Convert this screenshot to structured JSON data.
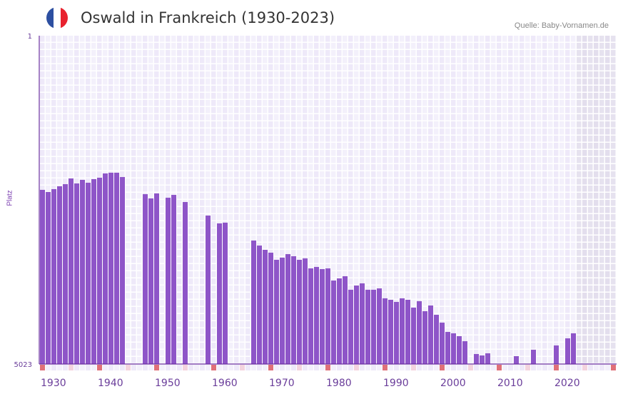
{
  "header": {
    "title": "Oswald in Frankreich (1930-2023)",
    "source": "Quelle: Baby-Vornamen.de"
  },
  "flag": {
    "name": "france-flag",
    "colors": [
      "#2d4fa1",
      "#ffffff",
      "#e8232f"
    ]
  },
  "colors": {
    "bar": "#8e55c8",
    "axis": "#6a2fa0",
    "label": "#6a3d9a",
    "decade_marker": "#e07078",
    "half_decade_marker": "#f3d3de"
  },
  "chart_data": {
    "type": "bar",
    "title": "Oswald in Frankreich (1930-2023)",
    "xlabel": "",
    "ylabel": "Platz",
    "ylim": [
      1,
      5023
    ],
    "y_inverted": true,
    "y_ticks": [
      "1",
      "5023"
    ],
    "x_range": [
      1930,
      2030
    ],
    "x_tick_labels": [
      "1930",
      "1940",
      "1950",
      "1960",
      "1970",
      "1980",
      "1990",
      "2000",
      "2010",
      "2020"
    ],
    "future_from": 2024,
    "years": [
      1930,
      1931,
      1932,
      1933,
      1934,
      1935,
      1936,
      1937,
      1938,
      1939,
      1940,
      1941,
      1942,
      1943,
      1944,
      1945,
      1946,
      1947,
      1948,
      1949,
      1950,
      1951,
      1952,
      1953,
      1954,
      1955,
      1956,
      1957,
      1958,
      1959,
      1960,
      1961,
      1962,
      1963,
      1964,
      1965,
      1966,
      1967,
      1968,
      1969,
      1970,
      1971,
      1972,
      1973,
      1974,
      1975,
      1976,
      1977,
      1978,
      1979,
      1980,
      1981,
      1982,
      1983,
      1984,
      1985,
      1986,
      1987,
      1988,
      1989,
      1990,
      1991,
      1992,
      1993,
      1994,
      1995,
      1996,
      1997,
      1998,
      1999,
      2000,
      2001,
      2002,
      2003,
      2004,
      2005,
      2006,
      2007,
      2008,
      2009,
      2010,
      2011,
      2012,
      2013,
      2014,
      2015,
      2016,
      2017,
      2018,
      2019,
      2020,
      2021,
      2022,
      2023
    ],
    "values": [
      2359,
      2392,
      2348,
      2304,
      2272,
      2184,
      2261,
      2206,
      2250,
      2195,
      2173,
      2108,
      2097,
      2097,
      2163,
      null,
      null,
      null,
      2425,
      2490,
      2414,
      null,
      2479,
      2436,
      null,
      2545,
      null,
      null,
      null,
      2752,
      null,
      2872,
      2861,
      null,
      null,
      null,
      null,
      3134,
      3211,
      3276,
      3320,
      3429,
      3396,
      3342,
      3374,
      3429,
      3407,
      3560,
      3538,
      3571,
      3560,
      3746,
      3713,
      3680,
      3887,
      3822,
      3789,
      3887,
      3887,
      3866,
      4018,
      4040,
      4073,
      4018,
      4040,
      4160,
      4062,
      4215,
      4128,
      4270,
      4390,
      4532,
      4553,
      4597,
      4674,
      null,
      4870,
      4892,
      4859,
      null,
      null,
      null,
      null,
      4903,
      null,
      null,
      4804,
      null,
      null,
      null,
      4739,
      null,
      4630,
      4553
    ]
  }
}
